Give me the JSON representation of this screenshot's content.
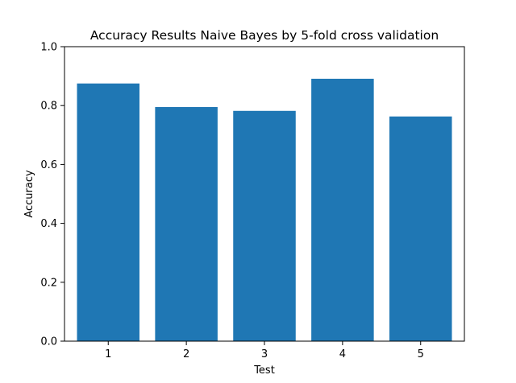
{
  "chart_data": {
    "type": "bar",
    "title": "Accuracy Results Naive Bayes by 5-fold cross validation",
    "xlabel": "Test",
    "ylabel": "Accuracy",
    "categories": [
      "1",
      "2",
      "3",
      "4",
      "5"
    ],
    "values": [
      0.875,
      0.795,
      0.782,
      0.891,
      0.763
    ],
    "ylim": [
      0,
      1.0
    ],
    "yticks": [
      "0.0",
      "0.2",
      "0.4",
      "0.6",
      "0.8",
      "1.0"
    ],
    "bar_color": "#1f77b4",
    "grid": false,
    "legend": "none"
  }
}
